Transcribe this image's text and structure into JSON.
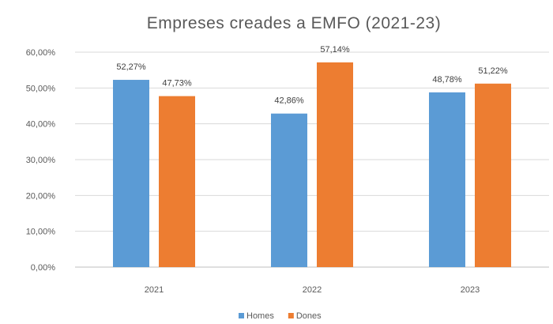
{
  "chart_data": {
    "type": "bar",
    "title": "Empreses creades a EMFO (2021-23)",
    "categories": [
      "2021",
      "2022",
      "2023"
    ],
    "series": [
      {
        "name": "Homes",
        "values": [
          52.27,
          42.86,
          48.78
        ],
        "labels": [
          "52,27%",
          "42,86%",
          "48,78%"
        ],
        "color": "#5b9bd5"
      },
      {
        "name": "Dones",
        "values": [
          47.73,
          57.14,
          51.22
        ],
        "labels": [
          "47,73%",
          "57,14%",
          "51,22%"
        ],
        "color": "#ed7d31"
      }
    ],
    "ylim": [
      0,
      60
    ],
    "yticks": [
      0,
      10,
      20,
      30,
      40,
      50,
      60
    ],
    "ytick_labels": [
      "0,00%",
      "10,00%",
      "20,00%",
      "30,00%",
      "40,00%",
      "50,00%",
      "60,00%"
    ],
    "xlabel": "",
    "ylabel": "",
    "grid": true,
    "legend_position": "bottom",
    "gridline_color": "#d9d9d9",
    "axis_line_color": "#bfbfbf"
  }
}
